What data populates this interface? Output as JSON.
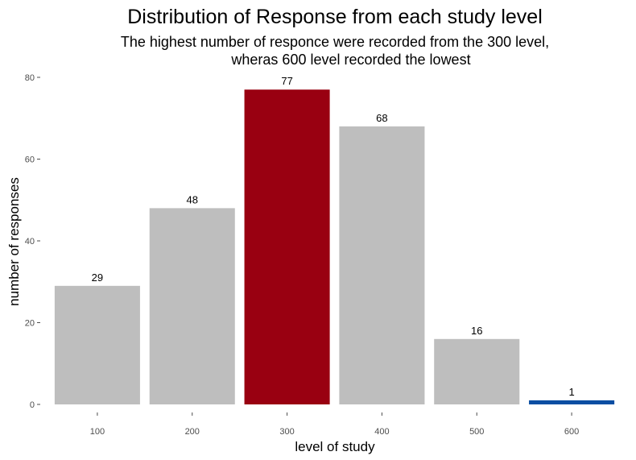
{
  "chart_data": {
    "type": "bar",
    "title": "Distribution of Response from each study level",
    "subtitle_lines": [
      "The highest number of responce were recorded from the 300 level,",
      "wheras 600 level recorded the lowest"
    ],
    "xlabel": "level of study",
    "ylabel": "number of responses",
    "categories": [
      "100",
      "200",
      "300",
      "400",
      "500",
      "600"
    ],
    "values": [
      29,
      48,
      77,
      68,
      16,
      1
    ],
    "data_labels": [
      "29",
      "48",
      "77",
      "68",
      "16",
      "1"
    ],
    "bar_colors": [
      "#bebebe",
      "#bebebe",
      "#990011",
      "#bebebe",
      "#bebebe",
      "#0b4ea2"
    ],
    "ylim": [
      0,
      80
    ],
    "yticks": [
      0,
      20,
      40,
      60,
      80
    ],
    "ytick_labels": [
      "0",
      "20",
      "40",
      "60",
      "80"
    ],
    "grid": false,
    "legend": "none"
  }
}
